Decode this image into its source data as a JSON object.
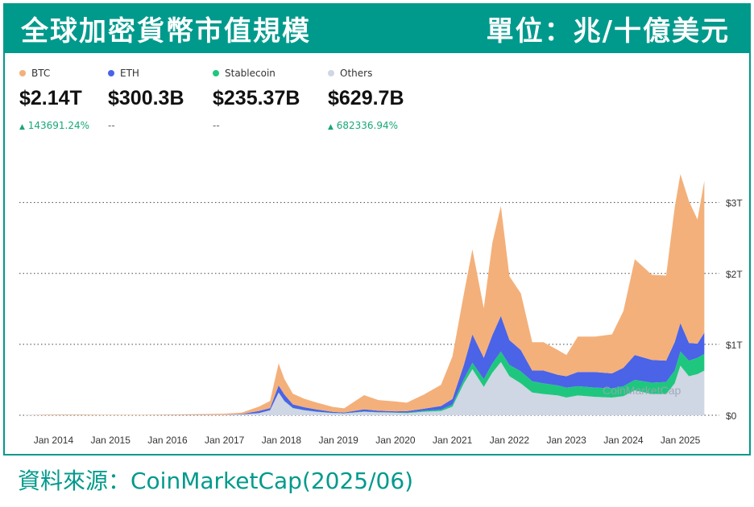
{
  "header": {
    "title": "全球加密貨幣市值規模",
    "unit": "單位：兆/十億美元"
  },
  "legend": [
    {
      "name": "BTC",
      "value": "$2.14T",
      "change": "143691.24%",
      "change_arrow": "▲",
      "color": "#f4b07a"
    },
    {
      "name": "ETH",
      "value": "$300.3B",
      "change": "--",
      "change_arrow": "",
      "color": "#4a63e7"
    },
    {
      "name": "Stablecoin",
      "value": "$235.37B",
      "change": "--",
      "change_arrow": "",
      "color": "#1fc77e"
    },
    {
      "name": "Others",
      "value": "$629.7B",
      "change": "682336.94%",
      "change_arrow": "▲",
      "color": "#cfd6e4"
    }
  ],
  "watermark": "CoinMarketCap",
  "caption": "資料來源：CoinMarketCap(2025/06)",
  "chart_data": {
    "type": "area",
    "stacked": true,
    "x_ticks": [
      "Jan 2014",
      "Jan 2015",
      "Jan 2016",
      "Jan 2017",
      "Jan 2018",
      "Jan 2019",
      "Jan 2020",
      "Jan 2021",
      "Jan 2022",
      "Jan 2023",
      "Jan 2024",
      "Jan 2025"
    ],
    "y_ticks": [
      "$0",
      "$1T",
      "$2T",
      "$3T"
    ],
    "ylim": [
      0,
      3.7
    ],
    "grid": true,
    "y_axis_side": "right",
    "x": [
      2013.5,
      2014,
      2014.5,
      2015,
      2015.5,
      2016,
      2016.5,
      2017,
      2017.3,
      2017.6,
      2017.8,
      2017.95,
      2018.05,
      2018.2,
      2018.4,
      2018.6,
      2018.9,
      2019.1,
      2019.45,
      2019.7,
      2020.0,
      2020.2,
      2020.5,
      2020.8,
      2021.0,
      2021.2,
      2021.35,
      2021.55,
      2021.7,
      2021.85,
      2022.0,
      2022.2,
      2022.4,
      2022.6,
      2022.85,
      2023.0,
      2023.2,
      2023.5,
      2023.8,
      2024.0,
      2024.2,
      2024.5,
      2024.75,
      2024.9,
      2025.0,
      2025.15,
      2025.3,
      2025.42
    ],
    "series": [
      {
        "name": "Others",
        "values": [
          0.005,
          0.005,
          0.004,
          0.004,
          0.003,
          0.003,
          0.004,
          0.006,
          0.012,
          0.03,
          0.07,
          0.32,
          0.2,
          0.1,
          0.07,
          0.05,
          0.03,
          0.025,
          0.05,
          0.04,
          0.035,
          0.03,
          0.05,
          0.06,
          0.12,
          0.45,
          0.65,
          0.4,
          0.6,
          0.75,
          0.55,
          0.45,
          0.32,
          0.3,
          0.28,
          0.25,
          0.28,
          0.26,
          0.25,
          0.27,
          0.35,
          0.3,
          0.3,
          0.45,
          0.7,
          0.55,
          0.58,
          0.63
        ]
      },
      {
        "name": "Stablecoin",
        "values": [
          0,
          0,
          0,
          0,
          0,
          0,
          0,
          0,
          0,
          0,
          0.001,
          0.002,
          0.003,
          0.003,
          0.003,
          0.003,
          0.003,
          0.003,
          0.004,
          0.004,
          0.005,
          0.008,
          0.012,
          0.02,
          0.03,
          0.06,
          0.09,
          0.11,
          0.13,
          0.15,
          0.16,
          0.17,
          0.16,
          0.15,
          0.14,
          0.14,
          0.13,
          0.13,
          0.13,
          0.14,
          0.15,
          0.16,
          0.17,
          0.18,
          0.2,
          0.22,
          0.23,
          0.235
        ]
      },
      {
        "name": "ETH",
        "values": [
          0,
          0,
          0,
          0,
          0,
          0.001,
          0.001,
          0.001,
          0.005,
          0.03,
          0.03,
          0.1,
          0.09,
          0.05,
          0.04,
          0.03,
          0.015,
          0.01,
          0.03,
          0.02,
          0.015,
          0.02,
          0.03,
          0.05,
          0.08,
          0.2,
          0.4,
          0.3,
          0.4,
          0.5,
          0.35,
          0.3,
          0.15,
          0.18,
          0.15,
          0.16,
          0.2,
          0.22,
          0.21,
          0.26,
          0.35,
          0.32,
          0.3,
          0.4,
          0.4,
          0.25,
          0.2,
          0.3
        ]
      },
      {
        "name": "BTC",
        "values": [
          0.001,
          0.008,
          0.007,
          0.004,
          0.004,
          0.006,
          0.01,
          0.015,
          0.02,
          0.06,
          0.1,
          0.31,
          0.22,
          0.15,
          0.12,
          0.1,
          0.07,
          0.06,
          0.2,
          0.15,
          0.14,
          0.12,
          0.2,
          0.3,
          0.6,
          1.0,
          1.2,
          0.7,
          1.3,
          1.55,
          0.9,
          0.8,
          0.4,
          0.4,
          0.35,
          0.3,
          0.5,
          0.5,
          0.55,
          0.8,
          1.35,
          1.2,
          1.2,
          1.9,
          2.1,
          2.0,
          1.75,
          2.14
        ]
      }
    ]
  }
}
